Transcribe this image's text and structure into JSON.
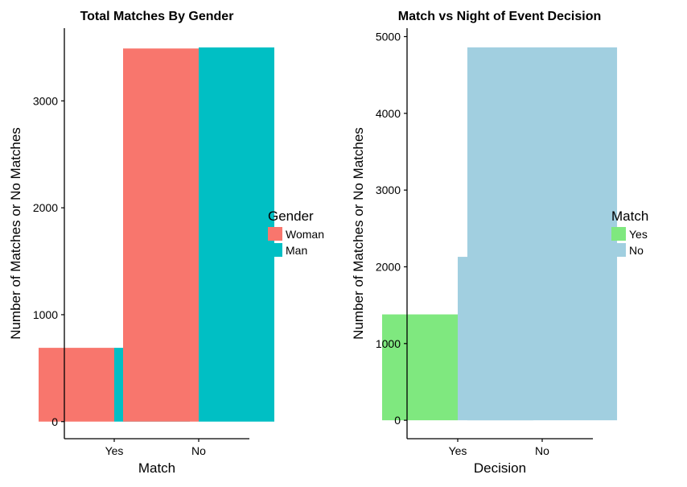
{
  "chart_data": [
    {
      "type": "bar",
      "title": "Total Matches By Gender",
      "xlabel": "Match",
      "ylabel": "Number of Matches or No Matches",
      "categories": [
        "Yes",
        "No"
      ],
      "series": [
        {
          "name": "Woman",
          "color": "#F8766D",
          "values": [
            690,
            3490
          ]
        },
        {
          "name": "Man",
          "color": "#00BFC4",
          "values": [
            690,
            3500
          ]
        }
      ],
      "yticks": [
        0,
        1000,
        2000,
        3000
      ],
      "ylim": [
        -160,
        3680
      ],
      "legend": {
        "title": "Gender",
        "position": "right"
      },
      "grid": false
    },
    {
      "type": "bar",
      "title": "Match vs Night of Event Decision",
      "xlabel": "Decision",
      "ylabel": "Number of Matches or No Matches",
      "categories": [
        "Yes",
        "No"
      ],
      "series": [
        {
          "name": "Yes",
          "color": "#7FE87F",
          "values": [
            1380,
            0
          ]
        },
        {
          "name": "No",
          "color": "#A1CFE0",
          "values": [
            2130,
            4860
          ]
        }
      ],
      "yticks": [
        0,
        1000,
        2000,
        3000,
        4000,
        5000
      ],
      "ylim": [
        -240,
        5110
      ],
      "legend": {
        "title": "Match",
        "position": "right"
      },
      "grid": false
    }
  ]
}
